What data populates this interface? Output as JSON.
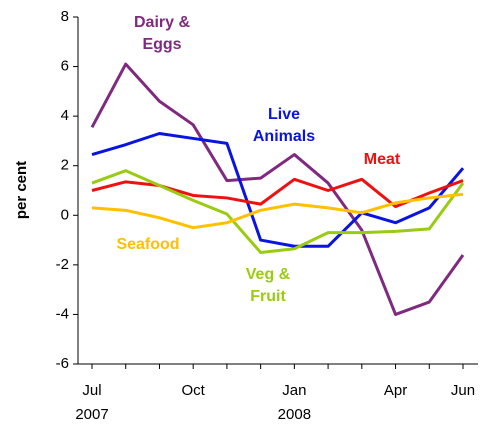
{
  "chart_data": {
    "type": "line",
    "ylabel": "per cent",
    "categories": [
      "Jul 2007",
      null,
      null,
      "Oct",
      null,
      null,
      "Jan 2008",
      null,
      null,
      "Apr",
      null,
      "Jun"
    ],
    "ylim": [
      -6,
      8
    ],
    "yticks": [
      -6,
      -4,
      -2,
      0,
      2,
      4,
      6,
      8
    ],
    "series": [
      {
        "name": "Dairy & Eggs",
        "color": "#7f2a7f",
        "values": [
          3.55,
          6.1,
          4.6,
          3.65,
          1.4,
          1.5,
          2.45,
          1.3,
          -0.6,
          -4.0,
          -3.5,
          -1.6
        ]
      },
      {
        "name": "Live Animals",
        "color": "#0a14e0",
        "values": [
          2.45,
          2.85,
          3.3,
          3.1,
          2.9,
          -1.0,
          -1.25,
          -1.25,
          0.1,
          -0.3,
          0.3,
          1.9
        ]
      },
      {
        "name": "Meat",
        "color": "#ee1111",
        "values": [
          1.0,
          1.35,
          1.2,
          0.8,
          0.7,
          0.45,
          1.45,
          1.0,
          1.45,
          0.35,
          0.9,
          1.4
        ]
      },
      {
        "name": "Veg & Fruit",
        "color": "#99cc11",
        "values": [
          1.3,
          1.8,
          1.2,
          0.6,
          0.05,
          -1.5,
          -1.35,
          -0.7,
          -0.7,
          -0.65,
          -0.55,
          1.3
        ]
      },
      {
        "name": "Seafood",
        "color": "#ffc000",
        "values": [
          0.3,
          0.2,
          -0.1,
          -0.5,
          -0.3,
          0.2,
          0.45,
          0.3,
          0.1,
          0.5,
          0.7,
          0.85
        ]
      }
    ]
  }
}
